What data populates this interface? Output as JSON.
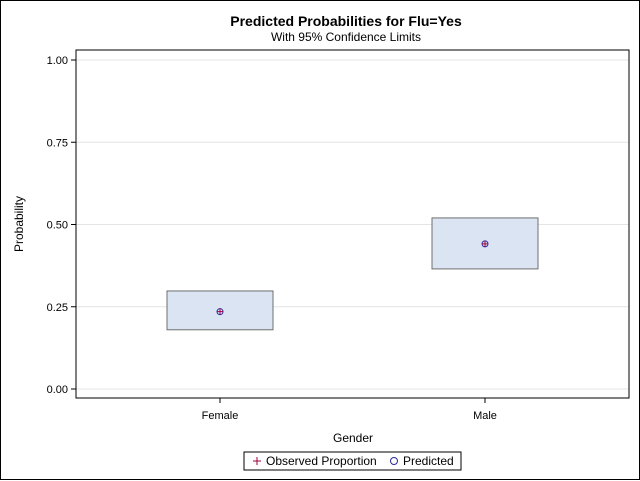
{
  "chart_data": {
    "type": "scatter",
    "title": "Predicted Probabilities for Flu=Yes",
    "subtitle": "With 95% Confidence Limits",
    "xlabel": "Gender",
    "ylabel": "Probability",
    "categories": [
      "Female",
      "Male"
    ],
    "ylim": [
      0,
      1
    ],
    "yticks": [
      0,
      0.25,
      0.5,
      0.75,
      1
    ],
    "ytick_labels": [
      "0.00",
      "0.25",
      "0.50",
      "0.75",
      "1.00"
    ],
    "grid": true,
    "series": [
      {
        "name": "Observed Proportion",
        "marker": "plus",
        "color": "#a0003c",
        "values": [
          0.235,
          0.441
        ]
      },
      {
        "name": "Predicted",
        "marker": "circle",
        "color": "#2a2aa0",
        "values": [
          0.235,
          0.441
        ]
      }
    ],
    "confidence_limits": {
      "lower": [
        0.18,
        0.365
      ],
      "upper": [
        0.298,
        0.52
      ],
      "fill": "#dae4f2",
      "stroke": "#6f6f6f"
    },
    "legend_placement": "bottom"
  }
}
